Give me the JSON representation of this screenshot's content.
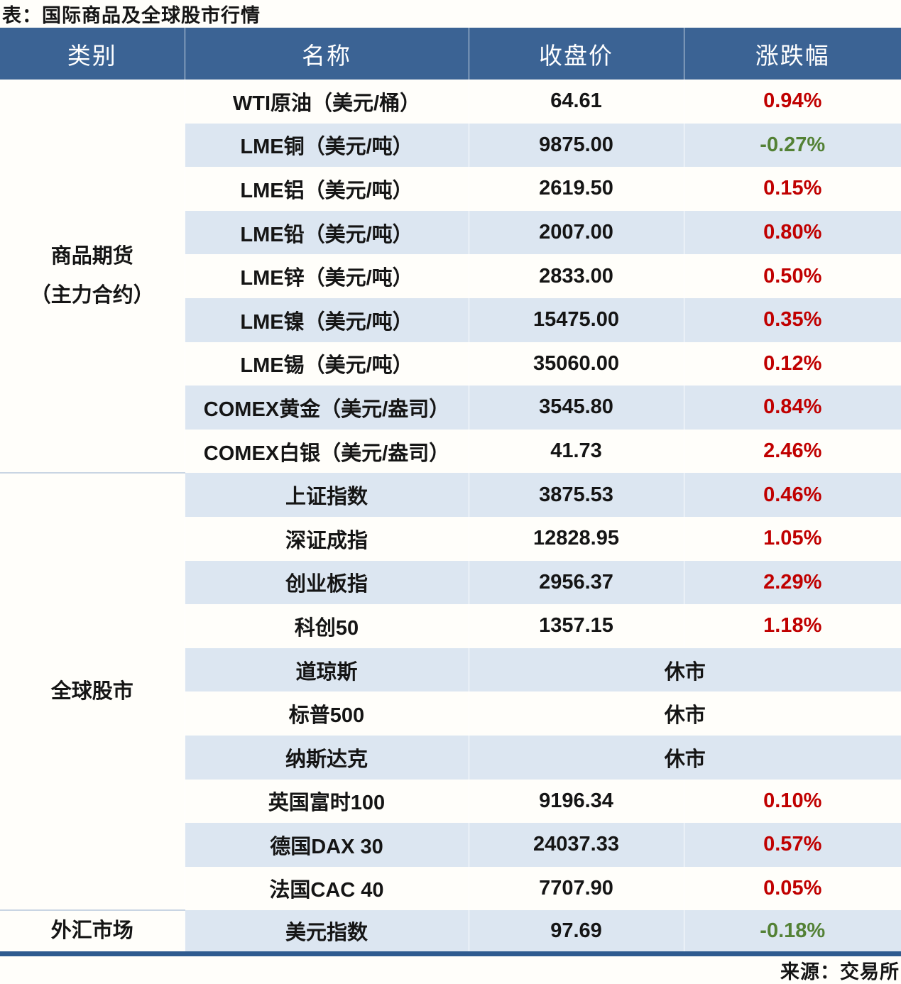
{
  "title": "表：国际商品及全球股市行情",
  "source": "来源：交易所",
  "colors": {
    "header_bg": "#3b6394",
    "header_text": "#ffffff",
    "stripe": "#dce6f1",
    "paper": "#fffefa",
    "up_red": "#c00000",
    "down_green": "#538135",
    "text": "#151515",
    "bottom_border": "#2f5b8f",
    "category_divider": "#c9d5e3"
  },
  "chart_data": {
    "type": "table",
    "title": "表：国际商品及全球股市行情",
    "source": "来源：交易所",
    "columns": [
      "类别",
      "名称",
      "收盘价",
      "涨跌幅"
    ],
    "closed_label": "休市",
    "groups": [
      {
        "category_lines": [
          "商品期货",
          "（主力合约）"
        ],
        "rows": [
          {
            "name": "WTI原油（美元/桶）",
            "close": "64.61",
            "change": "0.94%",
            "direction": "up"
          },
          {
            "name": "LME铜（美元/吨）",
            "close": "9875.00",
            "change": "-0.27%",
            "direction": "down"
          },
          {
            "name": "LME铝（美元/吨）",
            "close": "2619.50",
            "change": "0.15%",
            "direction": "up"
          },
          {
            "name": "LME铅（美元/吨）",
            "close": "2007.00",
            "change": "0.80%",
            "direction": "up"
          },
          {
            "name": "LME锌（美元/吨）",
            "close": "2833.00",
            "change": "0.50%",
            "direction": "up"
          },
          {
            "name": "LME镍（美元/吨）",
            "close": "15475.00",
            "change": "0.35%",
            "direction": "up"
          },
          {
            "name": "LME锡（美元/吨）",
            "close": "35060.00",
            "change": "0.12%",
            "direction": "up"
          },
          {
            "name": "COMEX黄金（美元/盎司）",
            "close": "3545.80",
            "change": "0.84%",
            "direction": "up"
          },
          {
            "name": "COMEX白银（美元/盎司）",
            "close": "41.73",
            "change": "2.46%",
            "direction": "up"
          }
        ]
      },
      {
        "category_lines": [
          "全球股市"
        ],
        "rows": [
          {
            "name": "上证指数",
            "close": "3875.53",
            "change": "0.46%",
            "direction": "up"
          },
          {
            "name": "深证成指",
            "close": "12828.95",
            "change": "1.05%",
            "direction": "up"
          },
          {
            "name": "创业板指",
            "close": "2956.37",
            "change": "2.29%",
            "direction": "up"
          },
          {
            "name": "科创50",
            "close": "1357.15",
            "change": "1.18%",
            "direction": "up"
          },
          {
            "name": "道琼斯",
            "closed": true
          },
          {
            "name": "标普500",
            "closed": true
          },
          {
            "name": "纳斯达克",
            "closed": true
          },
          {
            "name": "英国富时100",
            "close": "9196.34",
            "change": "0.10%",
            "direction": "up"
          },
          {
            "name": "德国DAX 30",
            "close": "24037.33",
            "change": "0.57%",
            "direction": "up"
          },
          {
            "name": "法国CAC 40",
            "close": "7707.90",
            "change": "0.05%",
            "direction": "up"
          }
        ]
      },
      {
        "category_lines": [
          "外汇市场"
        ],
        "rows": [
          {
            "name": "美元指数",
            "close": "97.69",
            "change": "-0.18%",
            "direction": "down"
          }
        ]
      }
    ]
  }
}
